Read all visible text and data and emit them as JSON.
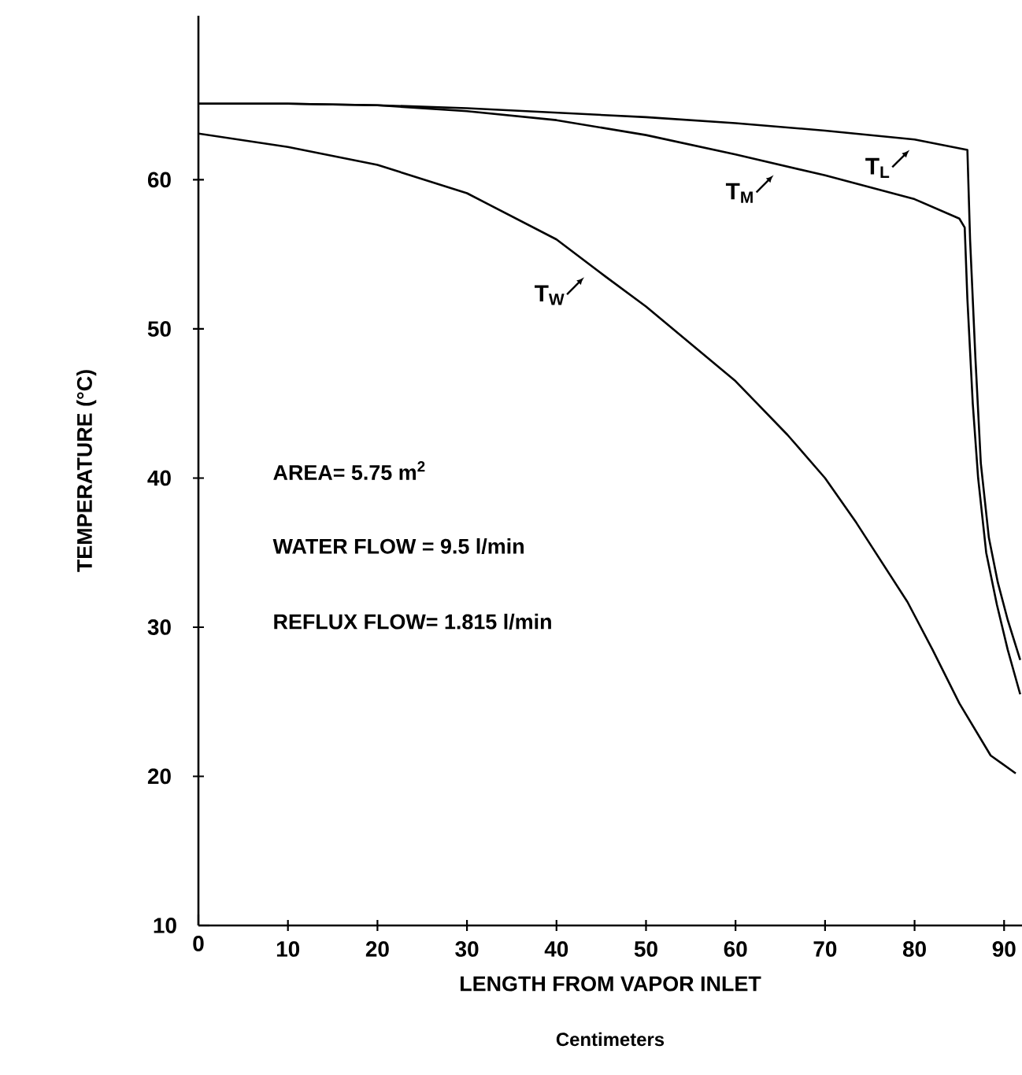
{
  "chart_data": {
    "type": "line",
    "xlabel": "LENGTH FROM VAPOR INLET",
    "ylabel": "TEMPERATURE (°C)",
    "xlim": [
      0,
      92
    ],
    "ylim": [
      10,
      71
    ],
    "xticks": [
      0,
      10,
      20,
      30,
      40,
      50,
      60,
      70,
      80,
      90
    ],
    "yticks": [
      10,
      20,
      30,
      40,
      50,
      60
    ],
    "grid": false,
    "legend": "top right",
    "marker": "none",
    "line_style": "solid",
    "series": [
      {
        "name": "T$_{L}$",
        "color": "#000000",
        "x": [
          0,
          10,
          20,
          30,
          40,
          50,
          60,
          70,
          80,
          85.9,
          86.2,
          86.8,
          87.4,
          88.3,
          89.3,
          90.4,
          91.8
        ],
        "values": [
          65.1,
          65.1,
          65.0,
          64.8,
          64.5,
          64.2,
          63.8,
          63.3,
          62.7,
          62.0,
          56,
          48,
          41,
          36,
          33,
          30.5,
          27.8
        ]
      },
      {
        "name": "T$_{M}$",
        "color": "#000000",
        "x": [
          0,
          10,
          20,
          30,
          40,
          50,
          60,
          70,
          80,
          85,
          85.6,
          85.9,
          86.5,
          87.1,
          88.0,
          89.2,
          90.4,
          91.8
        ],
        "values": [
          65.1,
          65.1,
          65.0,
          64.6,
          64.0,
          63.0,
          61.7,
          60.3,
          58.7,
          57.4,
          56.8,
          52,
          45,
          40,
          35,
          31.5,
          28.5,
          25.5
        ]
      },
      {
        "name": "T$_{W}$",
        "color": "#000000",
        "x": [
          0,
          10,
          20,
          30,
          40,
          45.5,
          50,
          60,
          65.8,
          70,
          73.5,
          79.2,
          82,
          85,
          88.5,
          91.3
        ],
        "values": [
          63.1,
          62.2,
          61.0,
          59.1,
          56.0,
          53.5,
          51.5,
          46.5,
          42.9,
          40.0,
          37.0,
          31.7,
          28.5,
          24.9,
          21.4,
          20.2
        ]
      }
    ],
    "annotations": [
      "AREA= 5.75 m$^{2}$",
      "WATER FLOW = 9.5 l/min",
      "REFLUX FLOW= 1.815 l/min",
      "Centimeters"
    ]
  }
}
